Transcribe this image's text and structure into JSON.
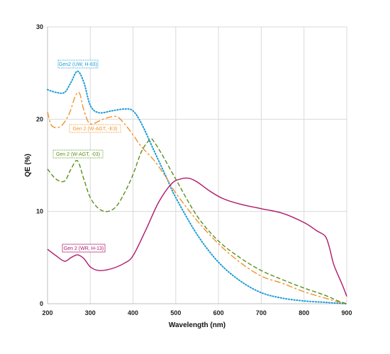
{
  "chart_data": {
    "type": "line",
    "xlabel": "Wavelength (nm)",
    "ylabel": "QE (%)",
    "xlim": [
      200,
      900
    ],
    "ylim": [
      0,
      30
    ],
    "xticks": [
      200,
      300,
      400,
      500,
      600,
      700,
      800,
      900
    ],
    "yticks": [
      0,
      10,
      20,
      30
    ],
    "grid": true,
    "series": [
      {
        "name": "Gen2 (UW, H-83)",
        "color": "#1a9bd7",
        "dash": "dotted",
        "x": [
          200,
          220,
          240,
          255,
          270,
          285,
          300,
          320,
          350,
          380,
          400,
          420,
          450,
          480,
          500,
          550,
          600,
          650,
          700,
          750,
          800,
          850,
          880,
          900
        ],
        "y": [
          23.2,
          22.9,
          22.9,
          24.0,
          25.2,
          24.0,
          21.5,
          20.7,
          20.9,
          21.1,
          20.9,
          19.5,
          16.5,
          13.5,
          11.5,
          7.5,
          4.5,
          2.5,
          1.2,
          0.6,
          0.3,
          0.15,
          0.05,
          0.0
        ]
      },
      {
        "name": "Gen 2 (W-AGT, -E3)",
        "color": "#f0922b",
        "dash": "longdash",
        "x": [
          200,
          210,
          230,
          250,
          265,
          275,
          285,
          300,
          330,
          360,
          380,
          400,
          420,
          450,
          480,
          500,
          550,
          600,
          650,
          700,
          750,
          800,
          850,
          880,
          900
        ],
        "y": [
          20.8,
          19.3,
          19.2,
          20.5,
          22.5,
          22.8,
          21.0,
          19.5,
          20.0,
          20.3,
          19.5,
          18.3,
          17.0,
          15.5,
          13.5,
          12.0,
          9.0,
          6.5,
          4.5,
          3.0,
          2.2,
          1.3,
          0.6,
          0.2,
          0.0
        ]
      },
      {
        "name": "Gen 2 (W-AGT, -03)",
        "color": "#5a8f1e",
        "dash": "dashed",
        "x": [
          200,
          220,
          240,
          255,
          270,
          285,
          300,
          320,
          340,
          360,
          380,
          400,
          420,
          440,
          450,
          470,
          500,
          550,
          600,
          650,
          700,
          750,
          800,
          850,
          880,
          900
        ],
        "y": [
          14.6,
          13.5,
          13.3,
          14.6,
          15.5,
          13.5,
          11.5,
          10.3,
          10.0,
          10.5,
          12.0,
          14.0,
          16.5,
          17.8,
          17.5,
          16.0,
          13.5,
          9.5,
          6.8,
          5.0,
          3.6,
          2.6,
          1.7,
          0.9,
          0.3,
          0.0
        ]
      },
      {
        "name": "Gen 2 (WR, H-13)",
        "color": "#b0186b",
        "dash": "solid",
        "x": [
          200,
          220,
          240,
          255,
          270,
          285,
          300,
          320,
          350,
          380,
          400,
          430,
          460,
          490,
          510,
          530,
          550,
          580,
          610,
          650,
          700,
          750,
          800,
          830,
          850,
          860,
          870,
          890,
          900
        ],
        "y": [
          5.9,
          5.2,
          4.6,
          5.0,
          5.3,
          4.9,
          4.0,
          3.6,
          3.8,
          4.4,
          5.2,
          8.0,
          11.0,
          13.0,
          13.5,
          13.6,
          13.2,
          12.2,
          11.4,
          10.8,
          10.3,
          9.8,
          8.8,
          7.9,
          7.3,
          6.0,
          4.2,
          2.0,
          0.8
        ]
      }
    ]
  }
}
